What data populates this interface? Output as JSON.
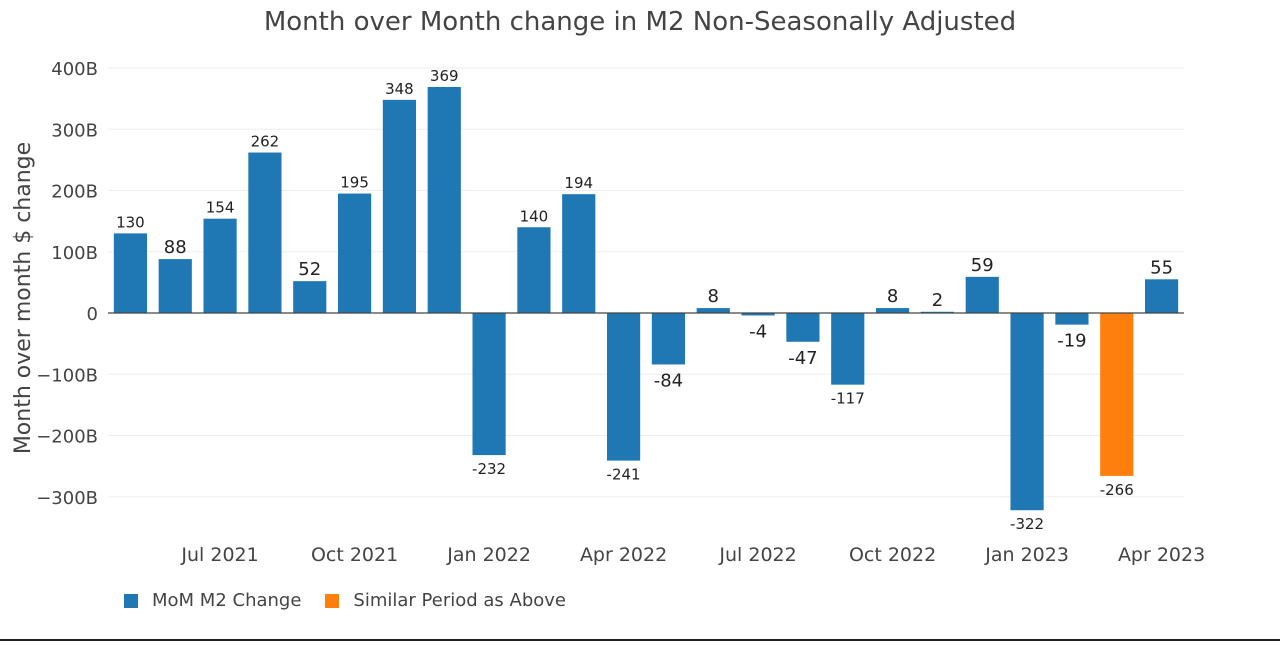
{
  "chart_data": {
    "type": "bar",
    "title": "Month over Month change in M2 Non-Seasonally Adjusted",
    "ylabel": "Month over month $ change",
    "xlabel": "",
    "ylim": [
      -350,
      420
    ],
    "y_ticks": [
      -300,
      -200,
      -100,
      0,
      100,
      200,
      300,
      400
    ],
    "y_tick_labels": [
      "−300B",
      "−200B",
      "−100B",
      "0",
      "100B",
      "200B",
      "300B",
      "400B"
    ],
    "x_ticks": [
      {
        "label": "Jul 2021",
        "index": 2
      },
      {
        "label": "Oct 2021",
        "index": 5
      },
      {
        "label": "Jan 2022",
        "index": 8
      },
      {
        "label": "Apr 2022",
        "index": 11
      },
      {
        "label": "Jul 2022",
        "index": 14
      },
      {
        "label": "Oct 2022",
        "index": 17
      },
      {
        "label": "Jan 2023",
        "index": 20
      },
      {
        "label": "Apr 2023",
        "index": 23
      }
    ],
    "categories": [
      "May 2021",
      "Jun 2021",
      "Jul 2021",
      "Aug 2021",
      "Sep 2021",
      "Oct 2021",
      "Nov 2021",
      "Dec 2021",
      "Jan 2022",
      "Feb 2022",
      "Mar 2022",
      "Apr 2022",
      "May 2022",
      "Jun 2022",
      "Jul 2022",
      "Aug 2022",
      "Sep 2022",
      "Oct 2022",
      "Nov 2022",
      "Dec 2022",
      "Jan 2023",
      "Feb 2023",
      "Mar 2023",
      "Apr 2023"
    ],
    "series": [
      {
        "name": "MoM M2 Change",
        "color": "#1f77b4",
        "values": [
          130,
          88,
          154,
          262,
          52,
          195,
          348,
          369,
          -232,
          140,
          194,
          -241,
          -84,
          8,
          -4,
          -47,
          -117,
          8,
          2,
          59,
          -322,
          -19,
          null,
          55
        ],
        "value_labels": [
          "130",
          "88",
          "154",
          "262",
          "52",
          "195",
          "348",
          "369",
          "-232",
          "140",
          "194",
          "-241",
          "-84",
          "8",
          "-4",
          "-47",
          "-117",
          "8",
          "2",
          "59",
          "-322",
          "-19",
          "",
          "55"
        ]
      },
      {
        "name": "Similar Period as Above",
        "color": "#ff7f0e",
        "values": [
          null,
          null,
          null,
          null,
          null,
          null,
          null,
          null,
          null,
          null,
          null,
          null,
          null,
          null,
          null,
          null,
          null,
          null,
          null,
          null,
          null,
          null,
          -266,
          null
        ],
        "value_labels": [
          "",
          "",
          "",
          "",
          "",
          "",
          "",
          "",
          "",
          "",
          "",
          "",
          "",
          "",
          "",
          "",
          "",
          "",
          "",
          "",
          "",
          "",
          "-266",
          ""
        ]
      }
    ],
    "grid": true,
    "legend_position": "bottom-left"
  }
}
